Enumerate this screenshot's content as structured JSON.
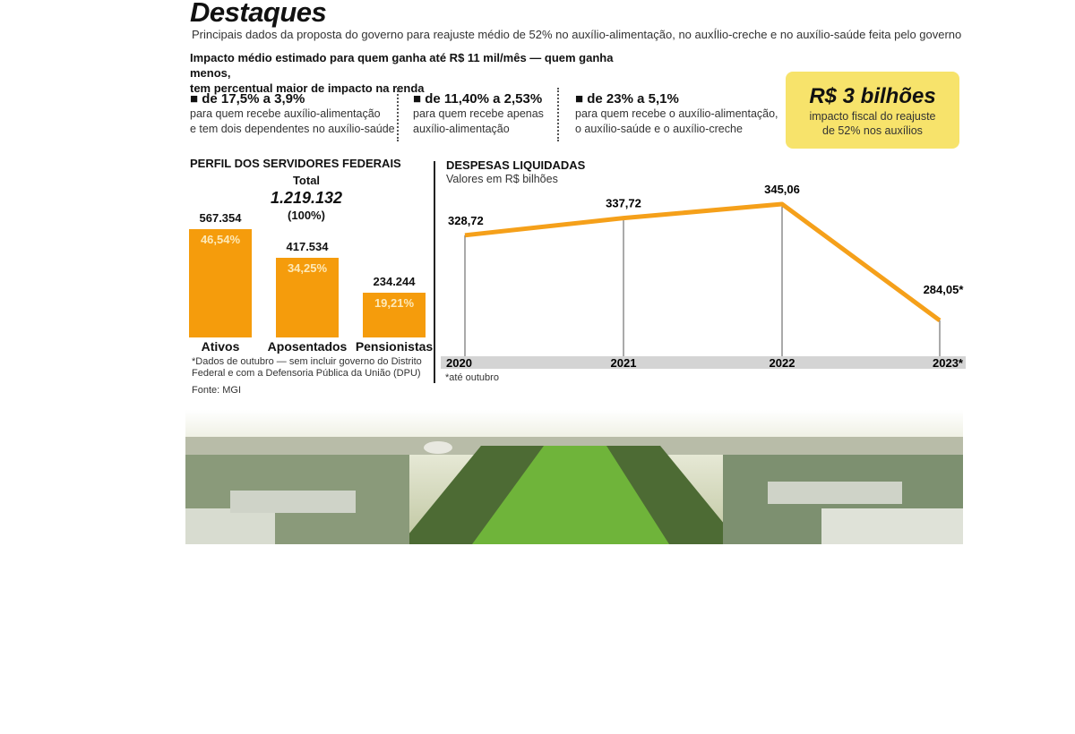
{
  "header": {
    "title": "Destaques",
    "subtitle": "Principais dados da proposta do governo para reajuste médio de 52% no auxílio-alimentação, no auxÍlio-creche e no auxílio-saúde feita pelo governo",
    "impact_line1": "Impacto médio estimado para quem ganha até R$ 11 mil/mês — quem ganha menos,",
    "impact_line2": "tem percentual maior de impacto na renda"
  },
  "ranges": [
    {
      "range": "■ de 17,5% a 3,9%",
      "line1": "para quem recebe auxílio-alimentação",
      "line2": "e tem dois dependentes no auxílio-saúde"
    },
    {
      "range": "■ de 11,40% a 2,53%",
      "line1": "para quem recebe apenas",
      "line2": "auxílio-alimentação"
    },
    {
      "range": "■ de 23% a 5,1%",
      "line1": "para quem recebe o auxílio-alimentação,",
      "line2": "o auxílio-saúde e o auxílio-creche"
    }
  ],
  "highlight": {
    "value": "R$ 3 bilhões",
    "line1": "impacto fiscal do reajuste",
    "line2": "de 52% nos auxílios",
    "color": "#f7e36b"
  },
  "chart_data": [
    {
      "type": "bar",
      "title": "PERFIL DOS SERVIDORES FEDERAIS",
      "total_label": "Total",
      "total_value": "1.219.132",
      "total_pct": "(100%)",
      "categories": [
        "Ativos",
        "Aposentados",
        "Pensionistas"
      ],
      "values": [
        567354,
        417534,
        234244
      ],
      "value_labels": [
        "567.354",
        "417.534",
        "234.244"
      ],
      "percent": [
        46.54,
        34.25,
        19.21
      ],
      "percent_labels": [
        "46,54%",
        "34,25%",
        "19,21%"
      ],
      "color": "#f59c0c",
      "notes": [
        "*Dados de outubro — sem incluir governo do Distrito",
        "Federal e com a Defensoria Pública da União (DPU)"
      ],
      "source": "Fonte: MGI"
    },
    {
      "type": "line",
      "title": "DESPESAS LIQUIDADAS",
      "subtitle": "Valores em R$ bilhões",
      "categories": [
        "2020",
        "2021",
        "2022",
        "2023*"
      ],
      "values": [
        328.72,
        337.72,
        345.06,
        284.05
      ],
      "value_labels": [
        "328,72",
        "337,72",
        "345,06",
        "284,05*"
      ],
      "color": "#f5a01a",
      "note": "*até outubro"
    }
  ]
}
